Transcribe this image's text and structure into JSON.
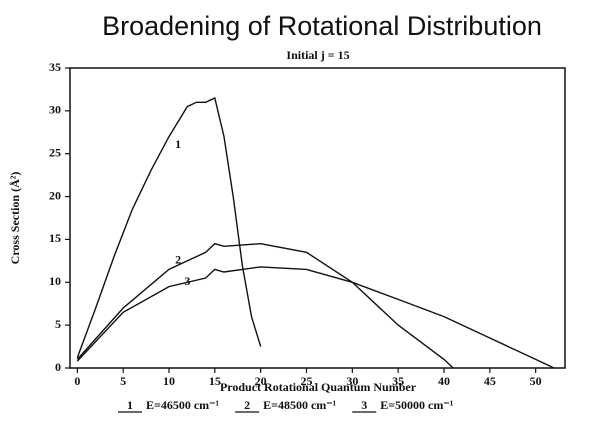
{
  "chart_data": {
    "type": "line",
    "title": "Broadening of Rotational Distribution",
    "subtitle": "Initial j = 15",
    "xlabel": "Product Rotational Quantum Number",
    "ylabel": "Cross Section (Å²)",
    "xlim": [
      -0.8,
      53.2
    ],
    "ylim": [
      0,
      35
    ],
    "xticks": [
      0,
      5,
      10,
      15,
      20,
      25,
      30,
      35,
      40,
      45,
      50
    ],
    "yticks": [
      0,
      5,
      10,
      15,
      20,
      25,
      30,
      35
    ],
    "grid": false,
    "series": [
      {
        "name": "E=46500 cm⁻¹",
        "label": "1",
        "color": "#111111",
        "x": [
          0,
          2,
          4,
          6,
          8,
          10,
          12,
          13,
          14,
          15,
          16,
          17,
          18,
          19,
          20
        ],
        "values": [
          1.2,
          7,
          13,
          18.5,
          23,
          27,
          30.5,
          31,
          31,
          31.5,
          27,
          20,
          12,
          6,
          2.5
        ]
      },
      {
        "name": "E=48500 cm⁻¹",
        "label": "2",
        "color": "#111111",
        "x": [
          0,
          5,
          10,
          14,
          15,
          16,
          20,
          25,
          30,
          35,
          40,
          41
        ],
        "values": [
          1,
          7,
          11.5,
          13.5,
          14.5,
          14.2,
          14.5,
          13.5,
          10,
          5,
          1,
          0
        ]
      },
      {
        "name": "E=50000 cm⁻¹",
        "label": "3",
        "color": "#111111",
        "x": [
          0,
          5,
          10,
          14,
          15,
          16,
          20,
          25,
          30,
          35,
          40,
          45,
          50,
          52
        ],
        "values": [
          0.8,
          6.5,
          9.5,
          10.5,
          11.5,
          11.2,
          11.8,
          11.5,
          10,
          8,
          6,
          3.5,
          1,
          0
        ]
      }
    ]
  }
}
